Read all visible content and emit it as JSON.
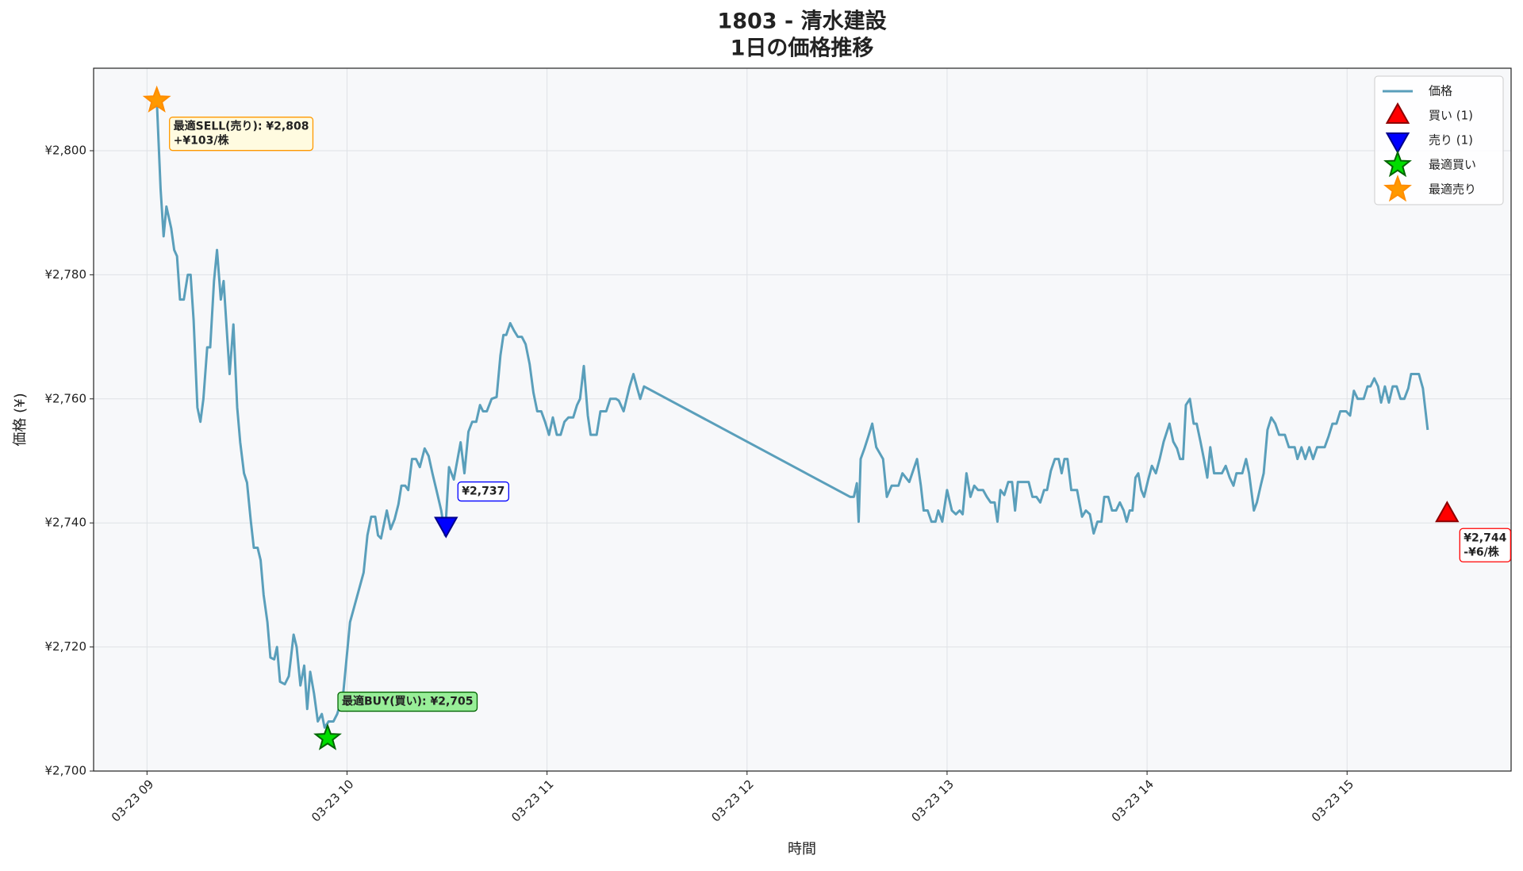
{
  "chart_data": {
    "type": "line",
    "title": "1803 - 清水建設",
    "subtitle": "1日の価格推移",
    "xlabel": "時間",
    "ylabel": "価格 (¥)",
    "xlim": [
      8.733,
      15.82
    ],
    "ylim": [
      2700,
      2813.3
    ],
    "xticks": [
      {
        "value": 9,
        "label": "03-23 09"
      },
      {
        "value": 10,
        "label": "03-23 10"
      },
      {
        "value": 11,
        "label": "03-23 11"
      },
      {
        "value": 12,
        "label": "03-23 12"
      },
      {
        "value": 13,
        "label": "03-23 13"
      },
      {
        "value": 14,
        "label": "03-23 14"
      },
      {
        "value": 15,
        "label": "03-23 15"
      }
    ],
    "yticks": [
      {
        "value": 2700,
        "label": "¥2,700"
      },
      {
        "value": 2720,
        "label": "¥2,720"
      },
      {
        "value": 2740,
        "label": "¥2,740"
      },
      {
        "value": 2760,
        "label": "¥2,760"
      },
      {
        "value": 2780,
        "label": "¥2,780"
      },
      {
        "value": 2800,
        "label": "¥2,800"
      }
    ],
    "grid": true,
    "legend": "upper right",
    "background": "#f7f8fa",
    "series": [
      {
        "name": "価格",
        "color": "#5a9fbb",
        "marker": "none",
        "x": [
          9.049,
          9.068,
          9.083,
          9.097,
          9.121,
          9.136,
          9.15,
          9.165,
          9.184,
          9.204,
          9.218,
          9.233,
          9.252,
          9.267,
          9.282,
          9.301,
          9.316,
          9.335,
          9.35,
          9.369,
          9.383,
          9.413,
          9.432,
          9.451,
          9.466,
          9.485,
          9.5,
          9.519,
          9.534,
          9.553,
          9.568,
          9.583,
          9.602,
          9.617,
          9.636,
          9.65,
          9.665,
          9.689,
          9.709,
          9.733,
          9.748,
          9.767,
          9.786,
          9.801,
          9.816,
          9.835,
          9.854,
          9.874,
          9.888,
          9.908,
          9.932,
          9.951,
          9.981,
          10.015,
          10.049,
          10.083,
          10.102,
          10.121,
          10.141,
          10.155,
          10.17,
          10.199,
          10.218,
          10.238,
          10.257,
          10.272,
          10.291,
          10.306,
          10.325,
          10.345,
          10.364,
          10.388,
          10.408,
          10.427,
          10.447,
          10.471,
          10.49,
          10.51,
          10.534,
          10.568,
          10.587,
          10.607,
          10.626,
          10.646,
          10.665,
          10.68,
          10.699,
          10.723,
          10.748,
          10.767,
          10.782,
          10.796,
          10.816,
          10.835,
          10.854,
          10.874,
          10.893,
          10.913,
          10.932,
          10.951,
          10.971,
          10.99,
          11.01,
          11.029,
          11.049,
          11.068,
          11.087,
          11.107,
          11.131,
          11.15,
          11.165,
          11.184,
          11.204,
          11.218,
          11.248,
          11.267,
          11.296,
          11.316,
          11.345,
          11.359,
          11.383,
          11.413,
          11.432,
          11.451,
          11.466,
          11.485,
          12.515,
          12.534,
          12.549,
          12.558,
          12.568,
          12.587,
          12.607,
          12.626,
          12.646,
          12.68,
          12.699,
          12.723,
          12.757,
          12.777,
          12.811,
          12.85,
          12.869,
          12.883,
          12.903,
          12.922,
          12.942,
          12.956,
          12.976,
          13.0,
          13.024,
          13.044,
          13.063,
          13.078,
          13.097,
          13.117,
          13.136,
          13.155,
          13.18,
          13.199,
          13.218,
          13.238,
          13.252,
          13.267,
          13.286,
          13.306,
          13.325,
          13.34,
          13.354,
          13.374,
          13.408,
          13.427,
          13.447,
          13.466,
          13.485,
          13.5,
          13.519,
          13.539,
          13.558,
          13.573,
          13.587,
          13.602,
          13.621,
          13.65,
          13.675,
          13.694,
          13.714,
          13.733,
          13.752,
          13.772,
          13.786,
          13.806,
          13.825,
          13.845,
          13.864,
          13.883,
          13.898,
          13.913,
          13.927,
          13.942,
          13.956,
          13.971,
          13.985,
          14.005,
          14.024,
          14.044,
          14.063,
          14.083,
          14.112,
          14.131,
          14.15,
          14.165,
          14.18,
          14.194,
          14.214,
          14.233,
          14.248,
          14.267,
          14.286,
          14.301,
          14.316,
          14.335,
          14.354,
          14.374,
          14.393,
          14.413,
          14.432,
          14.447,
          14.476,
          14.495,
          14.51,
          14.534,
          14.549,
          14.568,
          14.583,
          14.602,
          14.621,
          14.641,
          14.66,
          14.689,
          14.709,
          14.738,
          14.752,
          14.772,
          14.791,
          14.811,
          14.83,
          14.85,
          14.888,
          14.908,
          14.927,
          14.947,
          14.966,
          14.995,
          15.015,
          15.034,
          15.053,
          15.083,
          15.102,
          15.117,
          15.136,
          15.155,
          15.17,
          15.189,
          15.209,
          15.228,
          15.248,
          15.267,
          15.286,
          15.306,
          15.32,
          15.359,
          15.379,
          15.403
        ],
        "values": [
          2808.1,
          2793.8,
          2786.2,
          2791.0,
          2787.5,
          2784.0,
          2783.0,
          2776.0,
          2776.0,
          2780.0,
          2780.0,
          2772.7,
          2758.6,
          2756.3,
          2760.0,
          2768.3,
          2768.3,
          2779.0,
          2784.0,
          2776.0,
          2779.0,
          2764.0,
          2772.0,
          2758.6,
          2753.0,
          2748.0,
          2746.5,
          2740.3,
          2736.0,
          2736.0,
          2734.0,
          2728.4,
          2724.0,
          2718.3,
          2718.0,
          2720.0,
          2714.4,
          2714.0,
          2715.3,
          2722.0,
          2720.0,
          2713.8,
          2717.0,
          2710.0,
          2716.0,
          2712.5,
          2708.0,
          2709.2,
          2707.0,
          2708.0,
          2708.0,
          2709.2,
          2712.5,
          2724.0,
          2728.0,
          2732.0,
          2738.0,
          2741.0,
          2741.0,
          2738.0,
          2737.5,
          2742.0,
          2739.0,
          2740.6,
          2743.0,
          2746.0,
          2746.0,
          2745.3,
          2750.3,
          2750.3,
          2749.0,
          2752.0,
          2750.8,
          2748.0,
          2745.3,
          2742.0,
          2738.0,
          2749.0,
          2747.0,
          2753.0,
          2748.0,
          2754.7,
          2756.3,
          2756.3,
          2759.0,
          2758.0,
          2758.0,
          2760.0,
          2760.3,
          2767.0,
          2770.3,
          2770.3,
          2772.2,
          2771.0,
          2770.0,
          2770.0,
          2768.8,
          2765.6,
          2761.0,
          2758.0,
          2758.0,
          2756.3,
          2754.2,
          2757.0,
          2754.2,
          2754.2,
          2756.3,
          2757.0,
          2757.0,
          2759.0,
          2760.0,
          2765.3,
          2757.3,
          2754.2,
          2754.2,
          2758.0,
          2758.0,
          2760.0,
          2760.0,
          2759.7,
          2758.0,
          2762.0,
          2764.0,
          2761.7,
          2760.0,
          2762.0,
          2744.2,
          2744.2,
          2746.4,
          2740.2,
          2750.3,
          2752.0,
          2754.0,
          2756.0,
          2752.2,
          2750.3,
          2744.2,
          2746.0,
          2746.0,
          2748.0,
          2746.6,
          2750.3,
          2746.0,
          2742.0,
          2742.0,
          2740.2,
          2740.2,
          2742.0,
          2740.2,
          2745.3,
          2742.0,
          2741.4,
          2742.0,
          2741.4,
          2748.0,
          2744.2,
          2746.0,
          2745.3,
          2745.3,
          2744.2,
          2743.3,
          2743.3,
          2740.2,
          2745.3,
          2744.5,
          2746.6,
          2746.6,
          2742.0,
          2746.6,
          2746.6,
          2746.6,
          2744.2,
          2744.2,
          2743.3,
          2745.3,
          2745.3,
          2748.4,
          2750.3,
          2750.3,
          2748.0,
          2750.3,
          2750.3,
          2745.3,
          2745.3,
          2741.0,
          2742.0,
          2741.4,
          2738.3,
          2740.2,
          2740.2,
          2744.2,
          2744.2,
          2742.0,
          2742.0,
          2743.3,
          2742.0,
          2740.2,
          2742.0,
          2742.0,
          2747.3,
          2748.0,
          2745.3,
          2744.2,
          2746.9,
          2749.2,
          2748.0,
          2750.3,
          2753.1,
          2756.0,
          2753.1,
          2752.0,
          2750.3,
          2750.3,
          2759.0,
          2760.0,
          2756.0,
          2756.0,
          2753.1,
          2750.0,
          2747.3,
          2752.2,
          2748.0,
          2748.0,
          2748.0,
          2749.2,
          2747.3,
          2746.0,
          2748.0,
          2748.0,
          2750.3,
          2748.0,
          2742.0,
          2743.3,
          2746.0,
          2748.0,
          2755.0,
          2757.0,
          2756.0,
          2754.2,
          2754.2,
          2752.2,
          2752.2,
          2750.3,
          2752.2,
          2750.3,
          2752.2,
          2750.3,
          2752.2,
          2752.2,
          2754.0,
          2756.0,
          2756.0,
          2758.0,
          2758.0,
          2757.3,
          2761.3,
          2760.0,
          2760.0,
          2762.0,
          2762.0,
          2763.3,
          2762.0,
          2759.4,
          2762.0,
          2759.4,
          2762.0,
          2762.0,
          2760.0,
          2760.0,
          2761.7,
          2764.0,
          2764.0,
          2761.7,
          2755.0
        ]
      },
      {
        "name": "買い (1)",
        "color": "#ff0000",
        "edgecolor": "#8b0000",
        "marker": "triangle-up",
        "x": [
          15.5
        ],
        "values": [
          2741.4
        ],
        "annotation": [
          "¥2,744",
          "-¥6/株"
        ],
        "annotation_fill": "#ffffff",
        "annotation_edge": "#ff0000",
        "annotation_color": "#ff0000"
      },
      {
        "name": "売り (1)",
        "color": "#0000ff",
        "edgecolor": "#00008b",
        "marker": "triangle-down",
        "x": [
          10.495
        ],
        "values": [
          2739.7
        ],
        "annotation": [
          "¥2,737"
        ],
        "annotation_fill": "#ffffff",
        "annotation_edge": "#0000ff",
        "annotation_color": "#0000ff"
      },
      {
        "name": "最適買い",
        "color": "#00dd00",
        "edgecolor": "#006400",
        "marker": "star",
        "x": [
          9.903
        ],
        "values": [
          2705.3
        ],
        "annotation": [
          "最適BUY(買い): ¥2,705"
        ],
        "annotation_fill": "#98ee98",
        "annotation_edge": "#006400",
        "annotation_color": "#006400"
      },
      {
        "name": "最適売り",
        "color": "#ff9900",
        "edgecolor": "#ff8c00",
        "marker": "star",
        "x": [
          9.049
        ],
        "values": [
          2808.1
        ],
        "annotation": [
          "最適SELL(売り): ¥2,808",
          "+¥103/株"
        ],
        "annotation_fill": "#fffbe0",
        "annotation_edge": "#ff9900",
        "annotation_color": "#ff8c00"
      }
    ]
  }
}
